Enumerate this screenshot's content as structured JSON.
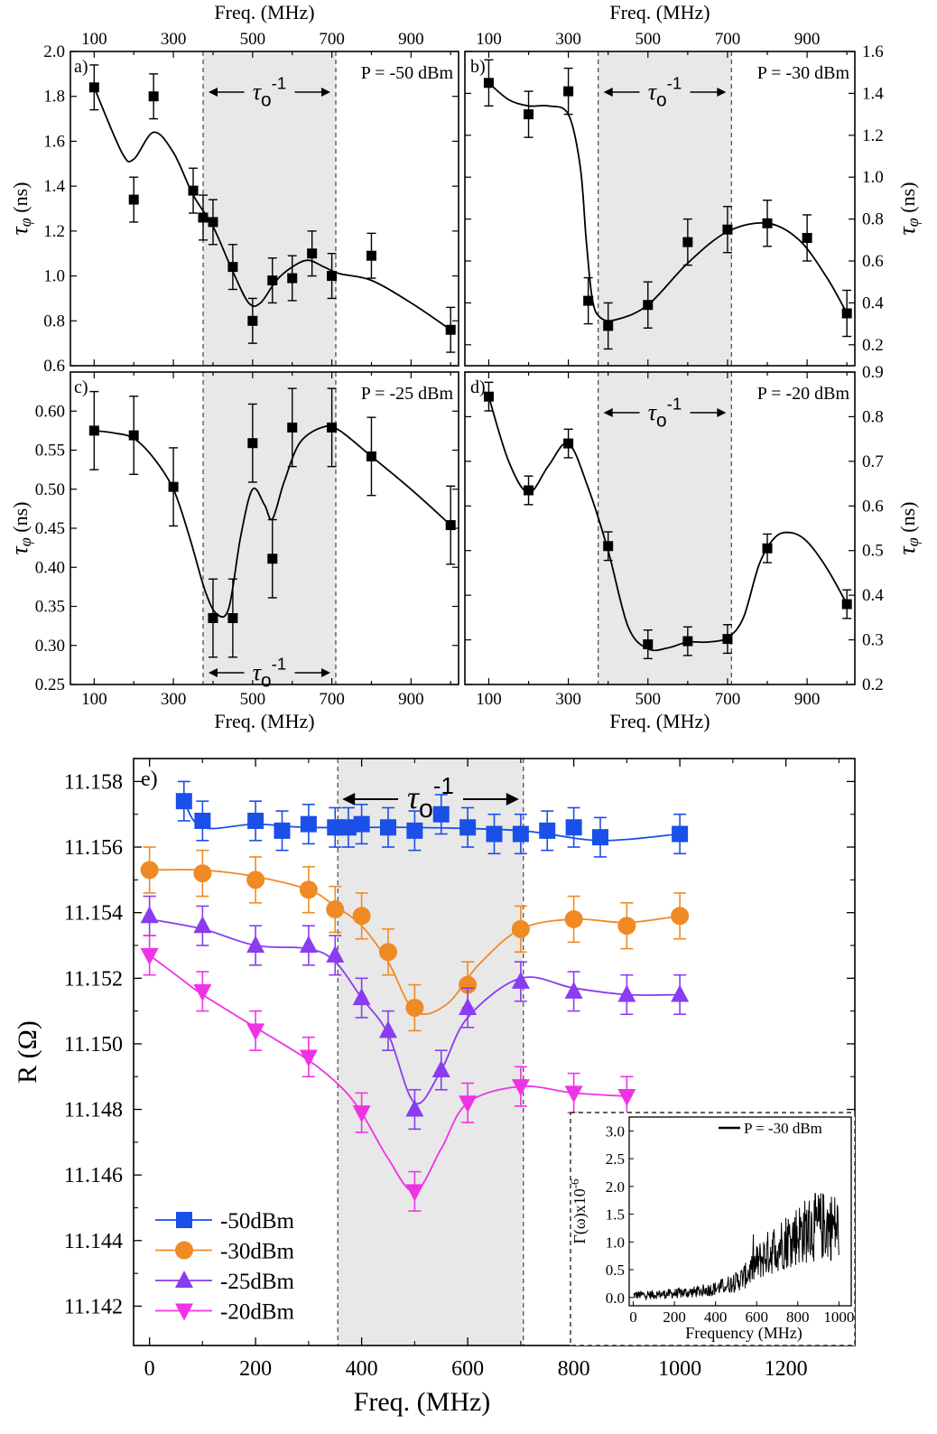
{
  "chart_data": [
    {
      "id": "a",
      "type": "scatter",
      "panel_label": "a)",
      "annotation": "P = -50 dBm",
      "band_label_main": "τ",
      "band_label_sub": "o",
      "band_label_sup": "-1",
      "band": [
        375,
        710
      ],
      "xlabel_top": "Freq. (MHz)",
      "xlabel_bottom": "",
      "ylabel_main": "τ",
      "ylabel_sub": "φ",
      "ylabel_unit": " (ns)",
      "y_side": "left",
      "xlim": [
        40,
        1020
      ],
      "ylim": [
        0.6,
        2.0
      ],
      "xticks": [
        100,
        300,
        500,
        700,
        900
      ],
      "yticks": [
        "0.6",
        "0.8",
        "1.0",
        "1.2",
        "1.4",
        "1.6",
        "1.8",
        "2.0"
      ],
      "x": [
        100,
        200,
        250,
        350,
        375,
        400,
        450,
        500,
        550,
        600,
        650,
        700,
        800,
        1000
      ],
      "y": [
        1.84,
        1.34,
        1.8,
        1.38,
        1.26,
        1.24,
        1.04,
        0.8,
        0.98,
        0.99,
        1.1,
        1.0,
        1.09,
        0.76
      ],
      "err": [
        0.1,
        0.1,
        0.1,
        0.1,
        0.1,
        0.1,
        0.1,
        0.1,
        0.1,
        0.1,
        0.1,
        0.1,
        0.1,
        0.1
      ],
      "fit_x": [
        100,
        170,
        200,
        250,
        300,
        350,
        400,
        450,
        490,
        520,
        560,
        600,
        640,
        680,
        720,
        800,
        900,
        1000
      ],
      "fit_y": [
        1.84,
        1.55,
        1.52,
        1.64,
        1.55,
        1.36,
        1.22,
        1.02,
        0.88,
        0.88,
        0.98,
        1.04,
        1.07,
        1.04,
        1.01,
        0.98,
        0.88,
        0.76
      ]
    },
    {
      "id": "b",
      "type": "scatter",
      "panel_label": "b)",
      "annotation": "P = -30 dBm",
      "band_label_main": "τ",
      "band_label_sub": "o",
      "band_label_sup": "-1",
      "band": [
        375,
        710
      ],
      "xlabel_top": "Freq. (MHz)",
      "xlabel_bottom": "",
      "ylabel_main": "τ",
      "ylabel_sub": "φ",
      "ylabel_unit": " (ns)",
      "y_side": "right",
      "xlim": [
        40,
        1020
      ],
      "ylim": [
        0.1,
        1.6
      ],
      "xticks": [
        100,
        300,
        500,
        700,
        900
      ],
      "yticks": [
        "0.2",
        "0.4",
        "0.6",
        "0.8",
        "1.0",
        "1.2",
        "1.4",
        "1.6"
      ],
      "x": [
        100,
        200,
        300,
        350,
        400,
        500,
        600,
        700,
        800,
        900,
        1000
      ],
      "y": [
        1.45,
        1.3,
        1.41,
        0.41,
        0.29,
        0.39,
        0.69,
        0.75,
        0.78,
        0.71,
        0.35
      ],
      "err": [
        0.11,
        0.11,
        0.11,
        0.11,
        0.11,
        0.11,
        0.11,
        0.11,
        0.11,
        0.11,
        0.11
      ],
      "fit_x": [
        100,
        150,
        200,
        250,
        300,
        330,
        345,
        360,
        380,
        420,
        500,
        600,
        700,
        800,
        880,
        950,
        1000
      ],
      "fit_y": [
        1.45,
        1.37,
        1.34,
        1.34,
        1.3,
        1.05,
        0.7,
        0.42,
        0.33,
        0.32,
        0.39,
        0.59,
        0.74,
        0.78,
        0.7,
        0.52,
        0.35
      ]
    },
    {
      "id": "c",
      "type": "scatter",
      "panel_label": "c)",
      "annotation": "P = -25 dBm",
      "band_label_main": "τ",
      "band_label_sub": "o",
      "band_label_sup": "-1",
      "band": [
        375,
        710
      ],
      "xlabel_top": "",
      "xlabel_bottom": "Freq. (MHz)",
      "ylabel_main": "τ",
      "ylabel_sub": "φ",
      "ylabel_unit": " (ns)",
      "y_side": "left",
      "xlim": [
        40,
        1020
      ],
      "ylim": [
        0.25,
        0.65
      ],
      "xticks": [
        100,
        300,
        500,
        700,
        900
      ],
      "yticks": [
        "0.25",
        "0.30",
        "0.35",
        "0.40",
        "0.45",
        "0.50",
        "0.55",
        "0.60"
      ],
      "x": [
        100,
        200,
        300,
        400,
        450,
        500,
        550,
        600,
        700,
        800,
        1000
      ],
      "y": [
        0.575,
        0.569,
        0.503,
        0.335,
        0.335,
        0.559,
        0.411,
        0.579,
        0.579,
        0.542,
        0.454
      ],
      "err": [
        0.05,
        0.05,
        0.05,
        0.05,
        0.05,
        0.05,
        0.05,
        0.05,
        0.05,
        0.05,
        0.05
      ],
      "fit_x": [
        100,
        150,
        200,
        250,
        300,
        340,
        380,
        410,
        440,
        470,
        500,
        530,
        550,
        580,
        620,
        680,
        720,
        800,
        900,
        1000
      ],
      "fit_y": [
        0.575,
        0.572,
        0.565,
        0.54,
        0.5,
        0.44,
        0.37,
        0.34,
        0.348,
        0.44,
        0.5,
        0.48,
        0.462,
        0.51,
        0.56,
        0.58,
        0.575,
        0.542,
        0.5,
        0.454
      ]
    },
    {
      "id": "d",
      "type": "scatter",
      "panel_label": "d)",
      "annotation": "P = -20 dBm",
      "band_label_main": "τ",
      "band_label_sub": "o",
      "band_label_sup": "-1",
      "band": [
        375,
        710
      ],
      "xlabel_top": "",
      "xlabel_bottom": "Freq. (MHz)",
      "ylabel_main": "τ",
      "ylabel_sub": "φ",
      "ylabel_unit": " (ns)",
      "y_side": "right",
      "xlim": [
        40,
        1020
      ],
      "ylim": [
        0.2,
        0.9
      ],
      "xticks": [
        100,
        300,
        500,
        700,
        900
      ],
      "yticks": [
        "0.2",
        "0.3",
        "0.4",
        "0.5",
        "0.6",
        "0.7",
        "0.8",
        "0.9"
      ],
      "x": [
        100,
        200,
        300,
        400,
        500,
        600,
        700,
        800,
        1000
      ],
      "y": [
        0.845,
        0.635,
        0.74,
        0.51,
        0.29,
        0.297,
        0.302,
        0.505,
        0.38
      ],
      "err": [
        0.032,
        0.032,
        0.032,
        0.032,
        0.032,
        0.032,
        0.032,
        0.032,
        0.032
      ],
      "fit_x": [
        100,
        150,
        200,
        250,
        300,
        350,
        400,
        450,
        500,
        550,
        600,
        650,
        700,
        740,
        780,
        820,
        860,
        900,
        950,
        1000
      ],
      "fit_y": [
        0.845,
        0.7,
        0.63,
        0.69,
        0.74,
        0.64,
        0.5,
        0.33,
        0.28,
        0.282,
        0.295,
        0.295,
        0.305,
        0.35,
        0.47,
        0.53,
        0.54,
        0.52,
        0.46,
        0.38
      ]
    },
    {
      "id": "e",
      "type": "scatter",
      "panel_label": "e)",
      "band_label_main": "τ",
      "band_label_sub": "o",
      "band_label_sup": "-1",
      "band": [
        355,
        705
      ],
      "xlabel": "Freq. (MHz)",
      "ylabel": "R (Ω)",
      "xlim": [
        -30,
        1330
      ],
      "ylim": [
        11.1408,
        11.1587
      ],
      "xticks": [
        "0",
        "200",
        "400",
        "600",
        "800",
        "1000",
        "1200"
      ],
      "yticks": [
        "11.142",
        "11.144",
        "11.146",
        "11.148",
        "11.150",
        "11.152",
        "11.154",
        "11.156",
        "11.158"
      ],
      "series": [
        {
          "name": "-50dBm",
          "color": "#1a4fe8",
          "marker": "square",
          "x": [
            65,
            100,
            200,
            250,
            300,
            350,
            375,
            400,
            450,
            500,
            550,
            600,
            650,
            700,
            750,
            800,
            850,
            1000
          ],
          "y": [
            11.1574,
            11.1568,
            11.1568,
            11.1565,
            11.1567,
            11.1566,
            11.1566,
            11.1567,
            11.1566,
            11.1565,
            11.157,
            11.1566,
            11.1564,
            11.1564,
            11.1565,
            11.1566,
            11.1563,
            11.1564
          ],
          "err": 0.0006,
          "fit": [
            [
              65,
              11.1574
            ],
            [
              100,
              11.1566
            ],
            [
              200,
              11.1567
            ],
            [
              300,
              11.1566
            ],
            [
              500,
              11.1566
            ],
            [
              700,
              11.1565
            ],
            [
              850,
              11.1562
            ],
            [
              1000,
              11.1564
            ]
          ]
        },
        {
          "name": "-30dBm",
          "color": "#f08a25",
          "marker": "circle",
          "x": [
            0,
            100,
            200,
            300,
            350,
            400,
            450,
            500,
            600,
            700,
            800,
            900,
            1000
          ],
          "y": [
            11.1553,
            11.1552,
            11.155,
            11.1547,
            11.1541,
            11.1539,
            11.1528,
            11.1511,
            11.1518,
            11.1535,
            11.1538,
            11.1536,
            11.1539
          ],
          "err": 0.0007,
          "fit": [
            [
              0,
              11.1553
            ],
            [
              100,
              11.1553
            ],
            [
              200,
              11.1551
            ],
            [
              300,
              11.1547
            ],
            [
              350,
              11.1542
            ],
            [
              400,
              11.1536
            ],
            [
              450,
              11.1525
            ],
            [
              500,
              11.151
            ],
            [
              560,
              11.1512
            ],
            [
              620,
              11.1524
            ],
            [
              700,
              11.1535
            ],
            [
              800,
              11.1538
            ],
            [
              900,
              11.1537
            ],
            [
              1000,
              11.1539
            ]
          ]
        },
        {
          "name": "-25dBm",
          "color": "#8a3cf0",
          "marker": "triangle-up",
          "x": [
            0,
            100,
            200,
            300,
            350,
            400,
            450,
            500,
            550,
            600,
            700,
            800,
            900,
            1000
          ],
          "y": [
            11.1539,
            11.1536,
            11.153,
            11.153,
            11.1527,
            11.1514,
            11.1504,
            11.148,
            11.1492,
            11.1511,
            11.1519,
            11.1516,
            11.1515,
            11.1515
          ],
          "err": 0.0006,
          "fit": [
            [
              0,
              11.1538
            ],
            [
              100,
              11.1535
            ],
            [
              200,
              11.153
            ],
            [
              300,
              11.1529
            ],
            [
              350,
              11.1525
            ],
            [
              400,
              11.1514
            ],
            [
              450,
              11.1503
            ],
            [
              500,
              11.1482
            ],
            [
              550,
              11.1492
            ],
            [
              600,
              11.1508
            ],
            [
              700,
              11.152
            ],
            [
              800,
              11.1517
            ],
            [
              900,
              11.1515
            ],
            [
              1000,
              11.1515
            ]
          ]
        },
        {
          "name": "-20dBm",
          "color": "#f032e6",
          "marker": "triangle-down",
          "x": [
            0,
            100,
            200,
            300,
            400,
            500,
            600,
            700,
            800,
            900
          ],
          "y": [
            11.1527,
            11.1516,
            11.1504,
            11.1496,
            11.1479,
            11.1455,
            11.1482,
            11.1487,
            11.1485,
            11.1484
          ],
          "err": 0.0006,
          "fit": [
            [
              0,
              11.1527
            ],
            [
              50,
              11.1521
            ],
            [
              100,
              11.1515
            ],
            [
              200,
              11.1505
            ],
            [
              300,
              11.1495
            ],
            [
              360,
              11.1487
            ],
            [
              400,
              11.1479
            ],
            [
              450,
              11.1465
            ],
            [
              500,
              11.1455
            ],
            [
              550,
              11.1468
            ],
            [
              600,
              11.1482
            ],
            [
              700,
              11.1487
            ],
            [
              800,
              11.1485
            ],
            [
              900,
              11.1484
            ]
          ]
        }
      ],
      "inset": {
        "legend": "P = -30 dBm",
        "xlabel": "Frequency (MHz)",
        "ylabel": "Γ(ω)x10",
        "ylabel_sup": "-6",
        "xlim": [
          -20,
          1060
        ],
        "ylim": [
          -0.15,
          3.25
        ],
        "xticks": [
          "0",
          "200",
          "400",
          "600",
          "800",
          "1000"
        ],
        "yticks": [
          "0.0",
          "0.5",
          "1.0",
          "1.5",
          "2.0",
          "2.5",
          "3.0"
        ],
        "envelope_x": [
          0,
          100,
          200,
          300,
          400,
          500,
          550,
          600,
          650,
          700,
          750,
          800,
          850,
          900,
          950,
          1000
        ],
        "envelope_y": [
          0.04,
          0.05,
          0.07,
          0.1,
          0.16,
          0.28,
          0.4,
          0.62,
          0.78,
          0.92,
          1.04,
          1.14,
          1.22,
          1.28,
          1.3,
          1.25
        ]
      }
    }
  ]
}
